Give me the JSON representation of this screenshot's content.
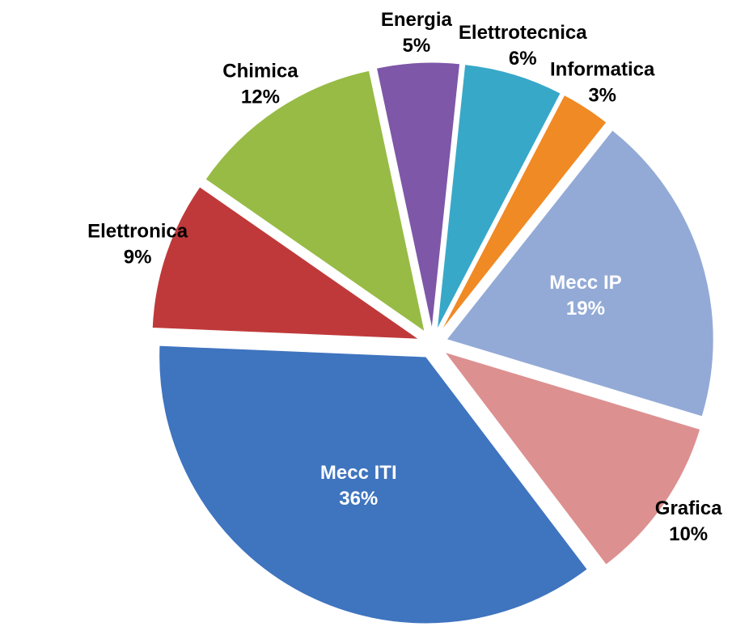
{
  "chart_data": {
    "type": "pie",
    "categories": [
      "Energia",
      "Elettrotecnica",
      "Informatica",
      "Mecc IP",
      "Grafica",
      "Mecc ITI",
      "Elettronica",
      "Chimica"
    ],
    "values": [
      5,
      6,
      3,
      19,
      10,
      36,
      9,
      12
    ],
    "value_labels": [
      "5%",
      "6%",
      "3%",
      "19%",
      "10%",
      "36%",
      "9%",
      "12%"
    ],
    "colors": [
      "#7e57a8",
      "#38a8c9",
      "#f08a24",
      "#93aad6",
      "#dd9090",
      "#3f74bf",
      "#c0393a",
      "#97bb45"
    ]
  }
}
